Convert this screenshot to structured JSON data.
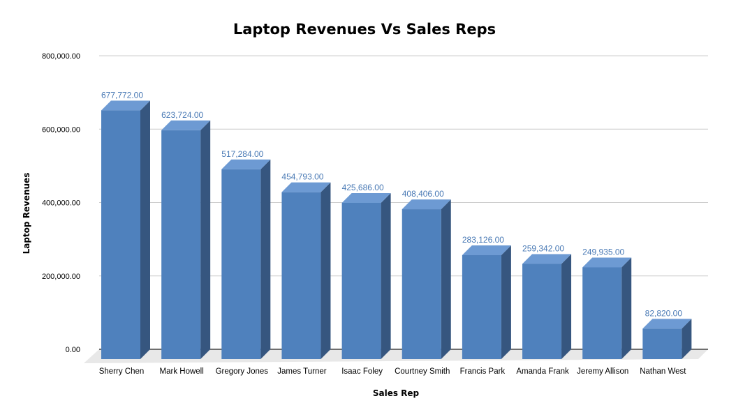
{
  "chart_data": {
    "type": "bar",
    "title": "Laptop Revenues Vs Sales Reps",
    "xlabel": "Sales Rep",
    "ylabel": "Laptop Revenues",
    "ylim": [
      0,
      800000
    ],
    "yticks": [
      "0.00",
      "200,000.00",
      "400,000.00",
      "600,000.00",
      "800,000.00"
    ],
    "categories": [
      "Sherry Chen",
      "Mark Howell",
      "Gregory Jones",
      "James Turner",
      "Isaac Foley",
      "Courtney Smith",
      "Francis Park",
      "Amanda Frank",
      "Jeremy Allison",
      "Nathan West"
    ],
    "values": [
      677772,
      623724,
      517284,
      454793,
      425686,
      408406,
      283126,
      259342,
      249935,
      82820
    ],
    "value_labels": [
      "677,772.00",
      "623,724.00",
      "517,284.00",
      "454,793.00",
      "425,686.00",
      "408,406.00",
      "283,126.00",
      "259,342.00",
      "249,935.00",
      "82,820.00"
    ],
    "grid": true,
    "legend": "none",
    "style": "3d-column",
    "colors": {
      "bar_front": "#4f81bd",
      "bar_top": "#6d9ad3",
      "bar_side": "#36567f",
      "floor": "#e8e8e8",
      "data_label": "#4a7ab5"
    }
  }
}
